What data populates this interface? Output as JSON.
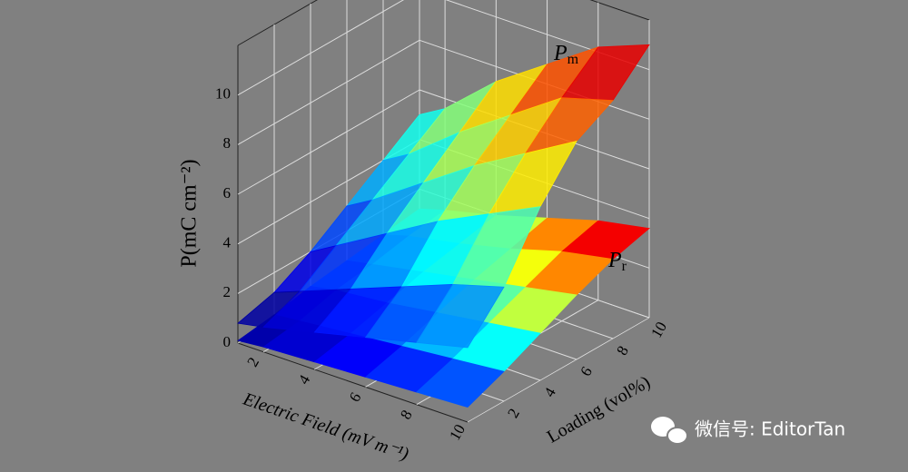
{
  "chart_data": {
    "type": "surface",
    "x_label": "Electric Field (mV m⁻¹)",
    "y_label": "Loading (vol%)",
    "z_label": "P(mC cm⁻²)",
    "x": [
      1,
      2,
      4,
      6,
      8,
      10
    ],
    "y": [
      0,
      2,
      4,
      6,
      8,
      10
    ],
    "xlim": [
      1,
      10
    ],
    "ylim": [
      0,
      10
    ],
    "zlim": [
      0,
      12
    ],
    "xticks": [
      2,
      4,
      6,
      8,
      10
    ],
    "yticks": [
      2,
      4,
      6,
      8,
      10
    ],
    "zticks": [
      0,
      2,
      4,
      6,
      8,
      10
    ],
    "colormap": "jet",
    "grid": true,
    "series": [
      {
        "values": [
          [
            0.8,
            1.0,
            1.5,
            2.0,
            2.5,
            3.0
          ],
          [
            1.2,
            1.6,
            2.4,
            3.2,
            4.0,
            4.6
          ],
          [
            2.0,
            2.6,
            3.8,
            5.0,
            6.0,
            7.0
          ],
          [
            3.0,
            3.6,
            5.0,
            6.4,
            7.6,
            8.8
          ],
          [
            4.0,
            4.6,
            6.2,
            7.6,
            9.0,
            9.6
          ],
          [
            5.0,
            5.6,
            7.4,
            8.8,
            10.2,
            11.0
          ]
        ]
      },
      {
        "values": [
          [
            0.1,
            0.2,
            0.3,
            0.4,
            0.5,
            0.6
          ],
          [
            0.3,
            0.4,
            0.6,
            0.8,
            1.0,
            1.2
          ],
          [
            0.6,
            0.8,
            1.0,
            1.3,
            1.6,
            1.9
          ],
          [
            0.8,
            1.0,
            1.4,
            1.8,
            2.2,
            2.6
          ],
          [
            1.0,
            1.3,
            1.7,
            2.2,
            2.8,
            3.2
          ],
          [
            1.2,
            1.5,
            2.0,
            2.6,
            3.2,
            3.6
          ]
        ]
      }
    ],
    "annotations": [
      {
        "text": "P",
        "subscript": "m"
      },
      {
        "text": "P",
        "subscript": "r"
      }
    ]
  },
  "watermark": "微信号: EditorTan"
}
